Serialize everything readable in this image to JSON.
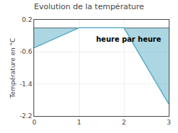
{
  "chart_data": {
    "type": "area",
    "title": "Evolution de la température",
    "ylabel": "Température en °C",
    "x": [
      0,
      1,
      2,
      3
    ],
    "values": [
      -0.5,
      0.0,
      0.0,
      -1.9
    ],
    "color": "#5baec8",
    "xlim": [
      0,
      3
    ],
    "ylim": [
      -2.2,
      0.2
    ],
    "xticks": [
      0,
      1,
      2,
      3
    ],
    "yticks": [
      0.2,
      -0.6,
      -1.4,
      -2.2
    ],
    "grid": true,
    "annotations": [
      {
        "text": "heure par heure",
        "x": 1.35,
        "y": -0.42
      }
    ]
  }
}
